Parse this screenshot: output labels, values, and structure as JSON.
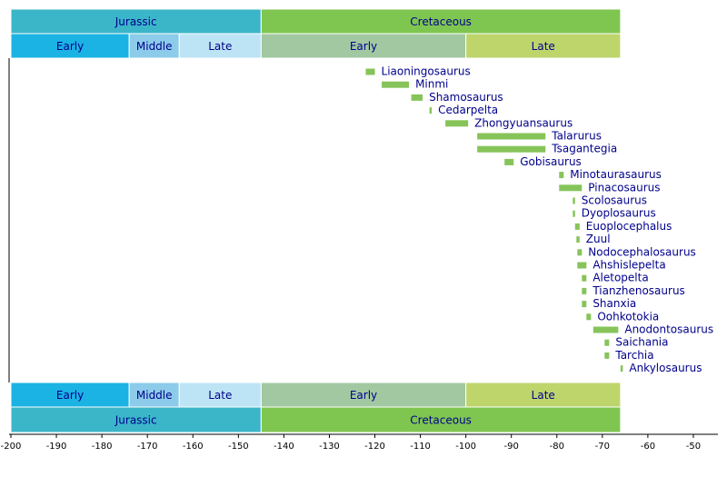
{
  "chart_data": {
    "type": "timeline",
    "xlim": [
      -200,
      -45
    ],
    "xticks": [
      -200,
      -190,
      -180,
      -170,
      -160,
      -150,
      -140,
      -130,
      -120,
      -110,
      -100,
      -90,
      -80,
      -70,
      -60,
      -50
    ],
    "periods": [
      {
        "label": "Jurassic",
        "start": -200,
        "end": -145,
        "color": "#3bb6c9"
      },
      {
        "label": "Cretaceous",
        "start": -145,
        "end": -66,
        "color": "#7fc650"
      }
    ],
    "epochs": [
      {
        "label": "Early",
        "start": -200,
        "end": -174,
        "color": "#1ab3e3"
      },
      {
        "label": "Middle",
        "start": -174,
        "end": -163,
        "color": "#8ccbea"
      },
      {
        "label": "Late",
        "start": -163,
        "end": -145,
        "color": "#bde4f4"
      },
      {
        "label": "Early",
        "start": -145,
        "end": -100,
        "color": "#a2c8a2"
      },
      {
        "label": "Late",
        "start": -100,
        "end": -66,
        "color": "#bed56c"
      }
    ],
    "color": "#86c45a",
    "categories": [
      "Liaoningosaurus",
      "Minmi",
      "Shamosaurus",
      "Cedarpelta",
      "Zhongyuansaurus",
      "Talarurus",
      "Tsagantegia",
      "Gobisaurus",
      "Minotaurasaurus",
      "Pinacosaurus",
      "Scolosaurus",
      "Dyoplosaurus",
      "Euoplocephalus",
      "Zuul",
      "Nodocephalosaurus",
      "Ahshislepelta",
      "Aletopelta",
      "Tianzhenosaurus",
      "Shanxia",
      "Oohkotokia",
      "Anodontosaurus",
      "Saichania",
      "Tarchia",
      "Ankylosaurus"
    ],
    "start": [
      -122,
      -118.5,
      -112,
      -108,
      -104.5,
      -97.5,
      -97.5,
      -91.5,
      -79.5,
      -79.5,
      -76.5,
      -76.5,
      -76,
      -75.7,
      -75.5,
      -75.5,
      -74.5,
      -74.5,
      -74.5,
      -73.5,
      -72,
      -69.5,
      -69.5,
      -66
    ],
    "end": [
      -120,
      -112.5,
      -109.5,
      -107.5,
      -99.5,
      -82.5,
      -82.5,
      -89.5,
      -78.5,
      -74.5,
      -76,
      -76,
      -75,
      -75,
      -74.5,
      -73.5,
      -73.5,
      -73.5,
      -73.5,
      -72.5,
      -66.5,
      -68.5,
      -68.5,
      -65.5
    ]
  }
}
